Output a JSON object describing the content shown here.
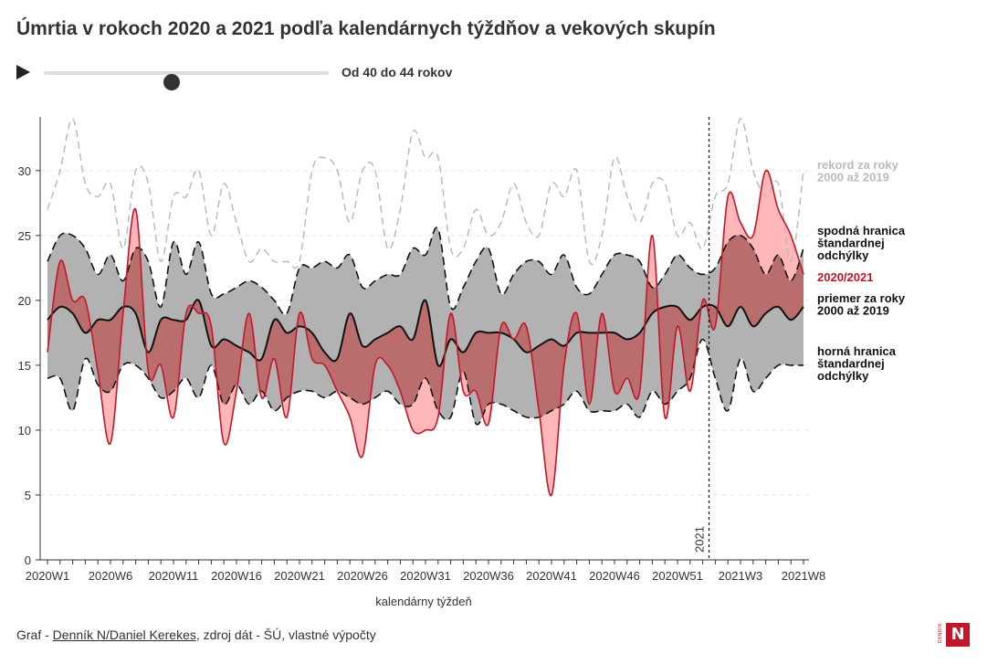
{
  "title": "Úmrtia v rokoch 2020 a 2021 podľa kalendárnych týždňov a vekových skupín",
  "slider": {
    "label": "Od 40 do 44 rokov",
    "position": 0.45,
    "play_icon": "play-icon"
  },
  "footer": {
    "prefix": "Graf - ",
    "link": "Denník N/Daniel Kerekes",
    "suffix": ", zdroj dát - ŠÚ, vlastné výpočty"
  },
  "logo": {
    "letter": "N",
    "side_text": "DENNÍK"
  },
  "colors": {
    "record": "#bbbbbb",
    "actual": "#c4162a",
    "band": "#b2b2b2",
    "above_fill": "#ffaaaa",
    "mean": "#111111",
    "text_dark": "#111111"
  },
  "chart_data": {
    "type": "line",
    "xlabel": "kalendárny týždeň",
    "ylabel": "",
    "ylim": [
      0,
      34
    ],
    "yticks": [
      0,
      5,
      10,
      15,
      20,
      25,
      30
    ],
    "categories": [
      "2020W1",
      "2020W2",
      "2020W3",
      "2020W4",
      "2020W5",
      "2020W6",
      "2020W7",
      "2020W8",
      "2020W9",
      "2020W10",
      "2020W11",
      "2020W12",
      "2020W13",
      "2020W14",
      "2020W15",
      "2020W16",
      "2020W17",
      "2020W18",
      "2020W19",
      "2020W20",
      "2020W21",
      "2020W22",
      "2020W23",
      "2020W24",
      "2020W25",
      "2020W26",
      "2020W27",
      "2020W28",
      "2020W29",
      "2020W30",
      "2020W31",
      "2020W32",
      "2020W33",
      "2020W34",
      "2020W35",
      "2020W36",
      "2020W37",
      "2020W38",
      "2020W39",
      "2020W40",
      "2020W41",
      "2020W42",
      "2020W43",
      "2020W44",
      "2020W45",
      "2020W46",
      "2020W47",
      "2020W48",
      "2020W49",
      "2020W50",
      "2020W51",
      "2020W52",
      "2020W53",
      "2021W1",
      "2021W2",
      "2021W3",
      "2021W4",
      "2021W5",
      "2021W6",
      "2021W7",
      "2021W8"
    ],
    "x_tick_labels": [
      "2020W1",
      "2020W6",
      "2020W11",
      "2020W16",
      "2020W21",
      "2020W26",
      "2020W31",
      "2020W36",
      "2020W41",
      "2020W46",
      "2020W51",
      "2021W3",
      "2021W8"
    ],
    "x_tick_indices": [
      0,
      5,
      10,
      15,
      20,
      25,
      30,
      35,
      40,
      45,
      50,
      55,
      60
    ],
    "divider": {
      "index": 52.5,
      "label": "2021"
    },
    "series": [
      {
        "name": "rekord za roky 2000 až 2019",
        "values": [
          27,
          30,
          34,
          29,
          28,
          29,
          24,
          30,
          29,
          23,
          28,
          28,
          30,
          25,
          29,
          26,
          23,
          24,
          23,
          23,
          23,
          30,
          31,
          30,
          26,
          30,
          30,
          24,
          27,
          33,
          31,
          31,
          24,
          24,
          27,
          25,
          26,
          29,
          26,
          25,
          29,
          28,
          30,
          23,
          25,
          31,
          28,
          26,
          29,
          29,
          25,
          26,
          24,
          28,
          29,
          34,
          30,
          28,
          29,
          23,
          30
        ]
      },
      {
        "name": "spodná hranica štandardnej odchýlky",
        "values": [
          23,
          25,
          25,
          24,
          22,
          23.5,
          21.5,
          24,
          23,
          19.5,
          24.5,
          22,
          24.5,
          20.5,
          20.5,
          21,
          21.5,
          21,
          20,
          19,
          22.5,
          22.5,
          23,
          22.5,
          23.5,
          21,
          21.5,
          22,
          22,
          24,
          23.5,
          25.5,
          19.5,
          21,
          23,
          24,
          20.5,
          22,
          23,
          23,
          22,
          23.5,
          21,
          20.5,
          22,
          23.5,
          23.5,
          23,
          21,
          22,
          23.5,
          22.5,
          22,
          22.5,
          24.5,
          25,
          24,
          22,
          23.5,
          21.5,
          24
        ]
      },
      {
        "name": "2020/2021",
        "values": [
          16,
          23,
          20,
          20,
          14.5,
          9,
          19,
          27,
          14.5,
          15,
          11,
          19,
          19,
          18,
          9,
          13,
          19,
          12.5,
          15.5,
          11,
          19,
          15.5,
          15,
          13,
          11,
          8,
          15,
          15,
          13,
          10,
          10,
          11,
          19,
          13,
          13,
          10.5,
          18,
          17,
          18,
          11.5,
          5,
          15,
          19,
          12,
          19,
          13,
          14,
          13,
          25,
          11,
          18,
          13,
          20,
          18,
          28,
          26,
          25,
          30,
          27,
          25,
          22
        ]
      },
      {
        "name": "priemer za roky 2000 až 2019",
        "values": [
          18.5,
          19.5,
          19,
          17.5,
          18.5,
          18.5,
          19.5,
          19,
          16,
          18.5,
          18.5,
          18.5,
          20,
          16.5,
          17,
          16.5,
          16,
          15.5,
          18.5,
          17.5,
          18,
          17.5,
          16,
          15.5,
          19,
          16.5,
          17,
          17.5,
          18,
          17,
          20,
          15,
          17,
          16,
          17.5,
          17.5,
          17.5,
          17,
          16,
          16.5,
          17,
          16.5,
          17.5,
          17.5,
          17.5,
          17.5,
          17,
          17.5,
          19,
          19.5,
          19.5,
          18.5,
          19.5,
          19.5,
          18,
          19.5,
          18,
          19,
          19.5,
          18.5,
          19.5
        ]
      },
      {
        "name": "horná hranica štandardnej odchýlky",
        "values": [
          14,
          14,
          11.5,
          15.5,
          13.5,
          13,
          15,
          15,
          14,
          12.5,
          13,
          14,
          12.5,
          15,
          12,
          13.5,
          12,
          13,
          11.5,
          12.5,
          13,
          13,
          12.5,
          13,
          12.5,
          12,
          12.5,
          13,
          12,
          12,
          14,
          11.5,
          11,
          14.5,
          10.5,
          12,
          12,
          11.5,
          11,
          11,
          11.5,
          12,
          13,
          11.5,
          11.5,
          11.5,
          12,
          11,
          13,
          12,
          13,
          14,
          17,
          14,
          11.5,
          15.5,
          13,
          14,
          15,
          15,
          15
        ]
      }
    ],
    "legend": [
      {
        "text": "rekord za roky 2000 až 2019",
        "color": "#bbbbbb"
      },
      {
        "text": "spodná hranica štandardnej odchýlky",
        "color": "#111111"
      },
      {
        "text": "2020/2021",
        "color": "#c4162a"
      },
      {
        "text": "priemer za roky 2000 až 2019",
        "color": "#111111"
      },
      {
        "text": "horná hranica štandardnej odchýlky",
        "color": "#111111"
      }
    ],
    "legend_placement": "right",
    "grid": true
  }
}
